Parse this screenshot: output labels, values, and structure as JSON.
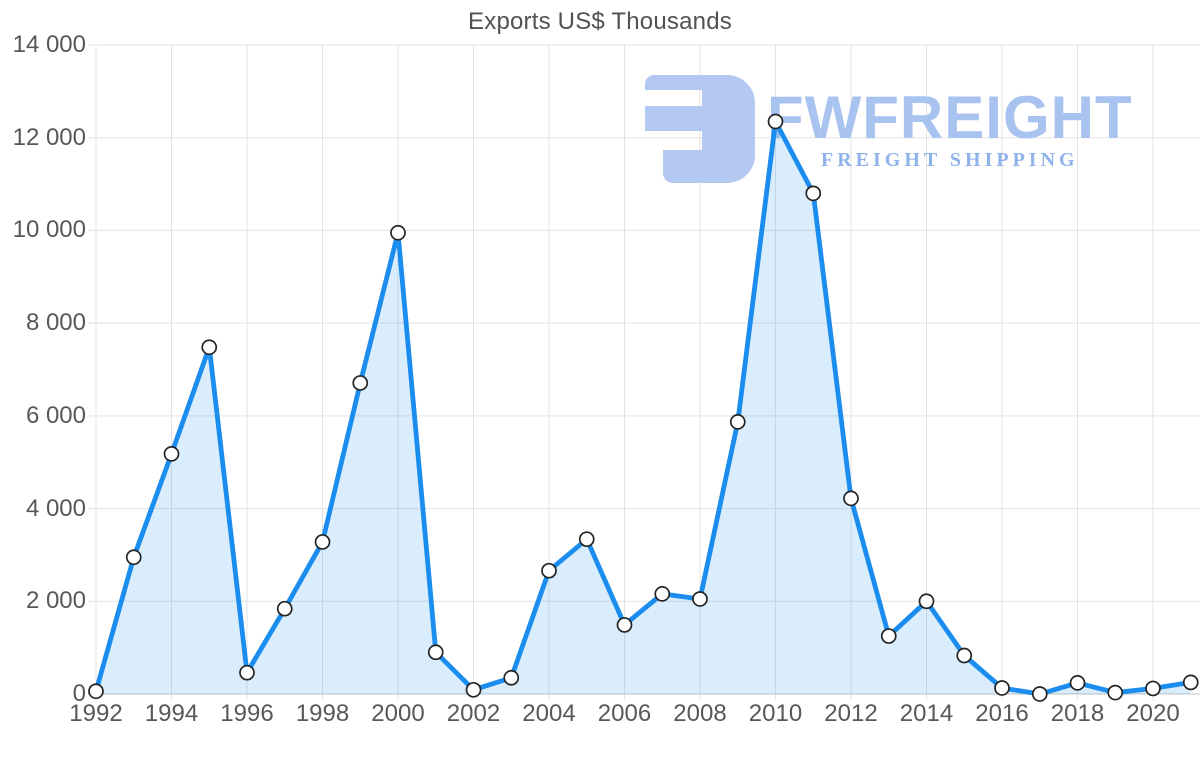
{
  "chart_data": {
    "type": "area",
    "title": "Exports US$ Thousands",
    "x": [
      1992,
      1993,
      1994,
      1995,
      1996,
      1997,
      1998,
      1999,
      2000,
      2001,
      2002,
      2003,
      2004,
      2005,
      2006,
      2007,
      2008,
      2009,
      2010,
      2011,
      2012,
      2013,
      2014,
      2015,
      2016,
      2017,
      2018,
      2019,
      2020,
      2021
    ],
    "series": [
      {
        "name": "Exports US$ Thousands",
        "values": [
          60,
          2950,
          5180,
          7480,
          460,
          1840,
          3280,
          6710,
          9950,
          900,
          90,
          350,
          2660,
          3340,
          1490,
          2160,
          2050,
          5870,
          12350,
          10800,
          4220,
          1250,
          2000,
          830,
          130,
          0,
          240,
          30,
          120,
          250
        ]
      }
    ],
    "xlabel": "",
    "ylabel": "",
    "ylim": [
      0,
      14000
    ],
    "xlim": [
      1992,
      2021
    ],
    "grid": true,
    "legend_position": "none",
    "ytick_values": [
      0,
      2000,
      4000,
      6000,
      8000,
      10000,
      12000,
      14000
    ],
    "ytick_labels": [
      "0",
      "2 000",
      "4 000",
      "6 000",
      "8 000",
      "10 000",
      "12 000",
      "14 000"
    ],
    "xtick_values": [
      1992,
      1994,
      1996,
      1998,
      2000,
      2002,
      2004,
      2006,
      2008,
      2010,
      2012,
      2014,
      2016,
      2018,
      2020
    ],
    "xtick_labels": [
      "1992",
      "1994",
      "1996",
      "1998",
      "2000",
      "2002",
      "2004",
      "2006",
      "2008",
      "2010",
      "2012",
      "2014",
      "2016",
      "2018",
      "2020"
    ]
  },
  "watermark": {
    "title": "FWFREIGHT",
    "subtitle": "FREIGHT SHIPPING",
    "logo_icon": "fwfreight-logo"
  },
  "colors": {
    "line": "#1a8dee",
    "fill": "#1a8dee",
    "fill_opacity": "0.16",
    "marker_fill": "#ffffff",
    "marker_stroke": "#242424",
    "grid": "#e3e3e3",
    "axis_line": "#cfcfcf",
    "tick_text": "#58585a",
    "title_text": "#525255",
    "watermark": "#b3c9f1",
    "watermark_title": "#a9c3f0",
    "watermark_subtitle": "#8fb2ea"
  }
}
